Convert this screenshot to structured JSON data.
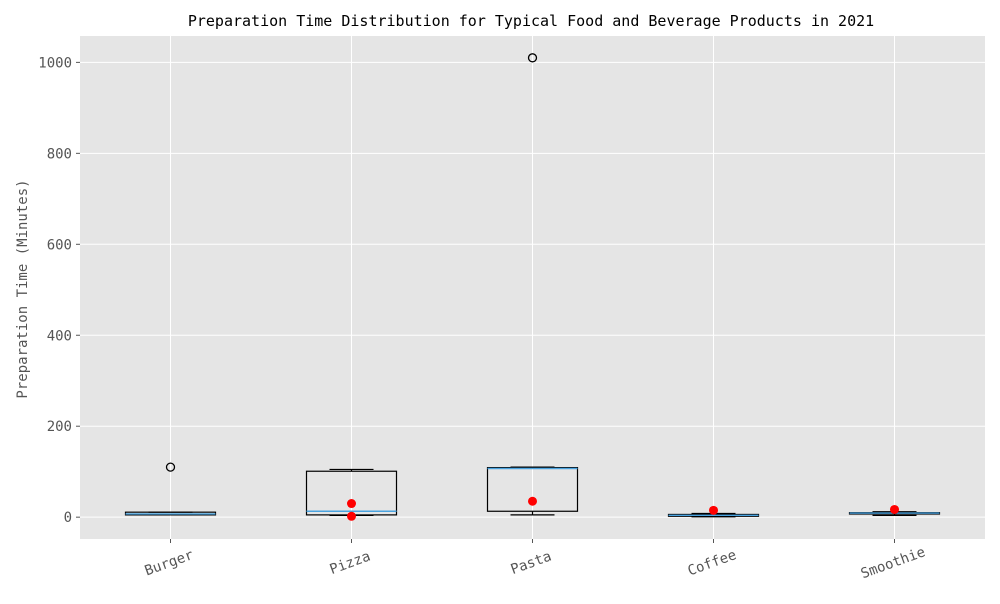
{
  "chart_data": {
    "type": "box",
    "title": "Preparation Time Distribution for Typical Food and Beverage Products in 2021",
    "xlabel": "",
    "ylabel": "Preparation Time (Minutes)",
    "ylim": [
      -48,
      1058
    ],
    "yticks": [
      0,
      200,
      400,
      600,
      800,
      1000
    ],
    "grid": true,
    "categories": [
      "Burger",
      "Pizza",
      "Pasta",
      "Coffee",
      "Smoothie"
    ],
    "boxes": [
      {
        "category": "Burger",
        "whisker_low": 5,
        "q1": 5,
        "median": 7,
        "q3": 11,
        "whisker_high": 11,
        "outliers": [
          110
        ]
      },
      {
        "category": "Pizza",
        "whisker_low": 4,
        "q1": 5,
        "median": 13,
        "q3": 101,
        "whisker_high": 105,
        "outliers": []
      },
      {
        "category": "Pasta",
        "whisker_low": 5,
        "q1": 13,
        "median": 107,
        "q3": 109,
        "whisker_high": 110,
        "outliers": [
          1010
        ]
      },
      {
        "category": "Coffee",
        "whisker_low": 1,
        "q1": 2,
        "median": 4,
        "q3": 6,
        "whisker_high": 8,
        "outliers": []
      },
      {
        "category": "Smoothie",
        "whisker_low": 4,
        "q1": 7,
        "median": 9,
        "q3": 10,
        "whisker_high": 12,
        "outliers": []
      }
    ],
    "markers": [
      {
        "category": "Pizza",
        "y": 30
      },
      {
        "category": "Pizza",
        "y": 2
      },
      {
        "category": "Pasta",
        "y": 35
      },
      {
        "category": "Coffee",
        "y": 15
      },
      {
        "category": "Smoothie",
        "y": 17
      }
    ],
    "colors": {
      "plot_background": "#e5e5e5",
      "grid": "#ffffff",
      "box_edge": "#000000",
      "median": "#4aa3df",
      "marker": "#ff0000"
    }
  }
}
